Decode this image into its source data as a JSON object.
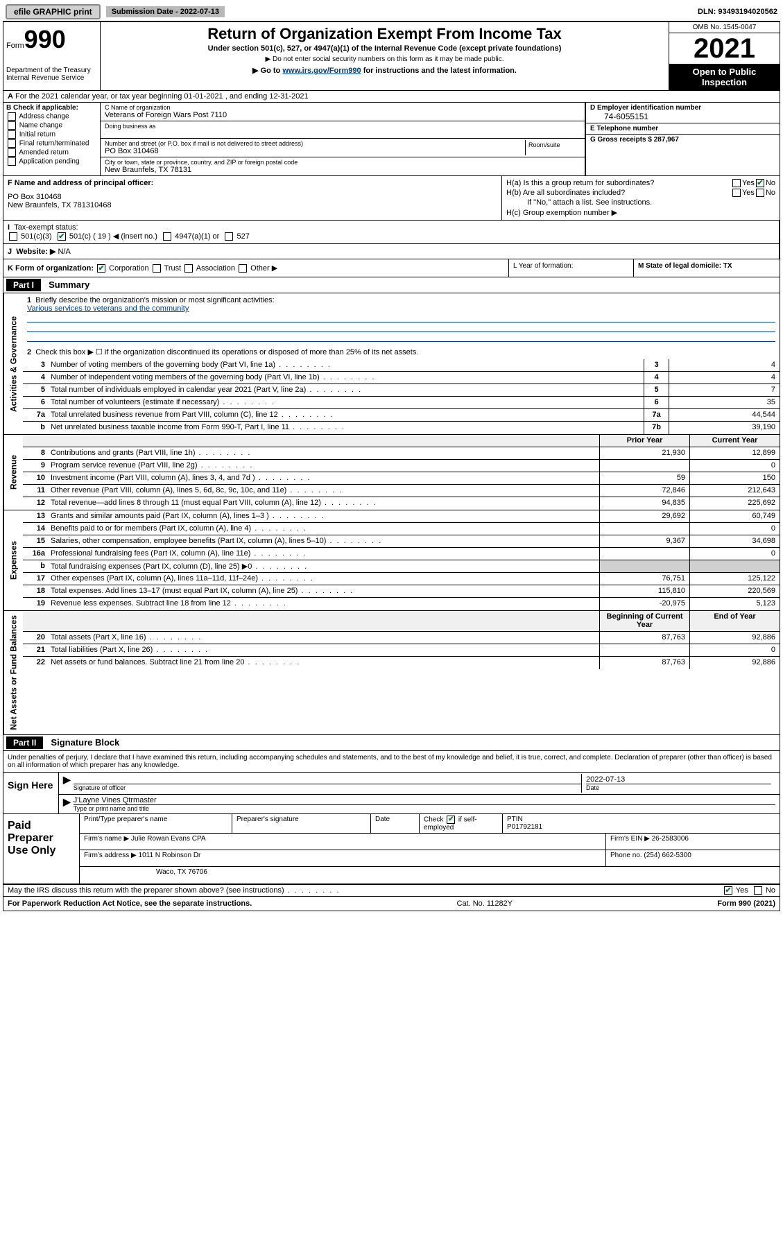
{
  "topbar": {
    "efile": "efile GRAPHIC print",
    "sub_label": "Submission Date - 2022-07-13",
    "dln": "DLN: 93493194020562"
  },
  "header": {
    "form_word": "Form",
    "form_num": "990",
    "dept": "Department of the Treasury\nInternal Revenue Service",
    "title": "Return of Organization Exempt From Income Tax",
    "subtitle": "Under section 501(c), 527, or 4947(a)(1) of the Internal Revenue Code (except private foundations)",
    "note1": "▶ Do not enter social security numbers on this form as it may be made public.",
    "note2_pre": "▶ Go to ",
    "note2_link": "www.irs.gov/Form990",
    "note2_post": " for instructions and the latest information.",
    "omb": "OMB No. 1545-0047",
    "year": "2021",
    "open": "Open to Public Inspection"
  },
  "rowA": "For the 2021 calendar year, or tax year beginning 01-01-2021   , and ending 12-31-2021",
  "B": {
    "label": "B Check if applicable:",
    "items": [
      "Address change",
      "Name change",
      "Initial return",
      "Final return/terminated",
      "Amended return",
      "Application pending"
    ]
  },
  "C": {
    "name_label": "C Name of organization",
    "name": "Veterans of Foreign Wars Post 7110",
    "dba_label": "Doing business as",
    "addr_label": "Number and street (or P.O. box if mail is not delivered to street address)",
    "room_label": "Room/suite",
    "addr": "PO Box 310468",
    "city_label": "City or town, state or province, country, and ZIP or foreign postal code",
    "city": "New Braunfels, TX  78131"
  },
  "D": {
    "label": "D Employer identification number",
    "val": "74-6055151"
  },
  "E": {
    "label": "E Telephone number",
    "val": ""
  },
  "G": {
    "label": "G Gross receipts $ 287,967"
  },
  "F": {
    "label": "F  Name and address of principal officer:",
    "addr1": "PO Box 310468",
    "addr2": "New Braunfels, TX  781310468"
  },
  "H": {
    "a": "H(a)  Is this a group return for subordinates?",
    "b": "H(b)  Are all subordinates included?",
    "note": "If \"No,\" attach a list. See instructions.",
    "c": "H(c)  Group exemption number ▶"
  },
  "I": {
    "label": "Tax-exempt status:",
    "opts": [
      "501(c)(3)",
      "501(c) ( 19 ) ◀ (insert no.)",
      "4947(a)(1) or",
      "527"
    ]
  },
  "J": {
    "label": "Website: ▶",
    "val": "N/A"
  },
  "K": {
    "label": "K Form of organization:",
    "opts": [
      "Corporation",
      "Trust",
      "Association",
      "Other ▶"
    ]
  },
  "L": {
    "label": "L Year of formation:"
  },
  "M": {
    "label": "M State of legal domicile: TX"
  },
  "part1": {
    "tag": "Part I",
    "title": "Summary"
  },
  "summary": {
    "q1": "Briefly describe the organization's mission or most significant activities:",
    "mission": "Various services to veterans and the community",
    "q2": "Check this box ▶ ☐  if the organization discontinued its operations or disposed of more than 25% of its net assets.",
    "lines_gov": [
      {
        "n": "3",
        "t": "Number of voting members of the governing body (Part VI, line 1a)",
        "box": "3",
        "v": "4"
      },
      {
        "n": "4",
        "t": "Number of independent voting members of the governing body (Part VI, line 1b)",
        "box": "4",
        "v": "4"
      },
      {
        "n": "5",
        "t": "Total number of individuals employed in calendar year 2021 (Part V, line 2a)",
        "box": "5",
        "v": "7"
      },
      {
        "n": "6",
        "t": "Total number of volunteers (estimate if necessary)",
        "box": "6",
        "v": "35"
      },
      {
        "n": "7a",
        "t": "Total unrelated business revenue from Part VIII, column (C), line 12",
        "box": "7a",
        "v": "44,544"
      },
      {
        "n": "b",
        "t": "Net unrelated business taxable income from Form 990-T, Part I, line 11",
        "box": "7b",
        "v": "39,190"
      }
    ],
    "col_prior": "Prior Year",
    "col_current": "Current Year",
    "revenue": [
      {
        "n": "8",
        "t": "Contributions and grants (Part VIII, line 1h)",
        "p": "21,930",
        "c": "12,899"
      },
      {
        "n": "9",
        "t": "Program service revenue (Part VIII, line 2g)",
        "p": "",
        "c": "0"
      },
      {
        "n": "10",
        "t": "Investment income (Part VIII, column (A), lines 3, 4, and 7d )",
        "p": "59",
        "c": "150"
      },
      {
        "n": "11",
        "t": "Other revenue (Part VIII, column (A), lines 5, 6d, 8c, 9c, 10c, and 11e)",
        "p": "72,846",
        "c": "212,643"
      },
      {
        "n": "12",
        "t": "Total revenue—add lines 8 through 11 (must equal Part VIII, column (A), line 12)",
        "p": "94,835",
        "c": "225,692"
      }
    ],
    "expenses": [
      {
        "n": "13",
        "t": "Grants and similar amounts paid (Part IX, column (A), lines 1–3 )",
        "p": "29,692",
        "c": "60,749"
      },
      {
        "n": "14",
        "t": "Benefits paid to or for members (Part IX, column (A), line 4)",
        "p": "",
        "c": "0"
      },
      {
        "n": "15",
        "t": "Salaries, other compensation, employee benefits (Part IX, column (A), lines 5–10)",
        "p": "9,367",
        "c": "34,698"
      },
      {
        "n": "16a",
        "t": "Professional fundraising fees (Part IX, column (A), line 11e)",
        "p": "",
        "c": "0"
      },
      {
        "n": "b",
        "t": "Total fundraising expenses (Part IX, column (D), line 25) ▶0",
        "p": "grey",
        "c": "grey"
      },
      {
        "n": "17",
        "t": "Other expenses (Part IX, column (A), lines 11a–11d, 11f–24e)",
        "p": "76,751",
        "c": "125,122"
      },
      {
        "n": "18",
        "t": "Total expenses. Add lines 13–17 (must equal Part IX, column (A), line 25)",
        "p": "115,810",
        "c": "220,569"
      },
      {
        "n": "19",
        "t": "Revenue less expenses. Subtract line 18 from line 12",
        "p": "-20,975",
        "c": "5,123"
      }
    ],
    "col_begin": "Beginning of Current Year",
    "col_end": "End of Year",
    "assets": [
      {
        "n": "20",
        "t": "Total assets (Part X, line 16)",
        "p": "87,763",
        "c": "92,886"
      },
      {
        "n": "21",
        "t": "Total liabilities (Part X, line 26)",
        "p": "",
        "c": "0"
      },
      {
        "n": "22",
        "t": "Net assets or fund balances. Subtract line 21 from line 20",
        "p": "87,763",
        "c": "92,886"
      }
    ]
  },
  "part2": {
    "tag": "Part II",
    "title": "Signature Block"
  },
  "sig": {
    "decl": "Under penalties of perjury, I declare that I have examined this return, including accompanying schedules and statements, and to the best of my knowledge and belief, it is true, correct, and complete. Declaration of preparer (other than officer) is based on all information of which preparer has any knowledge.",
    "sign_here": "Sign Here",
    "officer_sig": "Signature of officer",
    "date_label": "Date",
    "date_val": "2022-07-13",
    "name": "J'Layne Vines Qtrmaster",
    "name_label": "Type or print name and title"
  },
  "prep": {
    "title": "Paid Preparer Use Only",
    "h1": "Print/Type preparer's name",
    "h2": "Preparer's signature",
    "h3": "Date",
    "h4_pre": "Check",
    "h4_post": "if self-employed",
    "h5": "PTIN",
    "ptin": "P01792181",
    "firm_label": "Firm's name    ▶",
    "firm": "Julie Rowan Evans CPA",
    "ein_label": "Firm's EIN ▶",
    "ein": "26-2583006",
    "addr_label": "Firm's address ▶",
    "addr1": "1011 N Robinson Dr",
    "addr2": "Waco, TX  76706",
    "phone_label": "Phone no.",
    "phone": "(254) 662-5300"
  },
  "footer": {
    "discuss": "May the IRS discuss this return with the preparer shown above? (see instructions)",
    "yes": "Yes",
    "no": "No",
    "paperwork": "For Paperwork Reduction Act Notice, see the separate instructions.",
    "cat": "Cat. No. 11282Y",
    "form": "Form 990 (2021)"
  },
  "side_labels": {
    "gov": "Activities & Governance",
    "rev": "Revenue",
    "exp": "Expenses",
    "net": "Net Assets or Fund Balances"
  }
}
